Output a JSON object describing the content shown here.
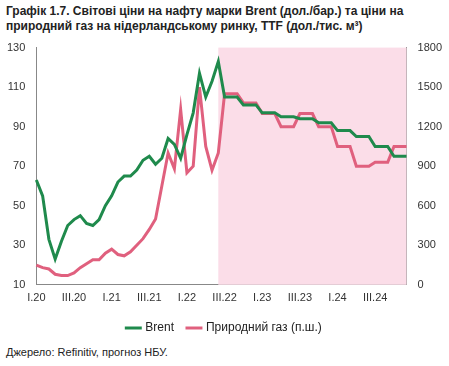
{
  "chart_data": {
    "type": "line",
    "title": "Графік 1.7. Світові ціни на нафту марки Brent (дол./бар.) та ціни на природний газ на нідерландському ринку, TTF (дол./тис. м³)",
    "source": "Джерело: Refinitiv, прогноз НБУ.",
    "categories": [
      "I.20",
      null,
      null,
      null,
      null,
      null,
      "III.20",
      null,
      null,
      null,
      null,
      null,
      "I.21",
      null,
      null,
      null,
      null,
      null,
      "III.21",
      null,
      null,
      null,
      null,
      null,
      "I.22",
      null,
      null,
      null,
      null,
      null,
      "III.22",
      null,
      null,
      null,
      null,
      null,
      "I.23",
      null,
      null,
      null,
      null,
      null,
      "III.23",
      null,
      null,
      null,
      null,
      null,
      "I.24",
      null,
      null,
      null,
      null,
      null,
      "III.24",
      null,
      null,
      null,
      null,
      null
    ],
    "series": [
      {
        "name": "Brent",
        "color": "#1f8a4c",
        "axis": "y",
        "values": [
          63,
          55,
          33,
          23,
          32,
          40,
          43,
          45,
          41,
          40,
          43,
          50,
          55,
          62,
          65,
          65,
          68,
          73,
          75,
          71,
          74,
          84,
          81,
          74,
          86,
          97,
          117,
          105,
          113,
          123,
          105,
          105,
          105,
          101,
          101,
          101,
          97,
          97,
          97,
          95,
          95,
          95,
          94,
          94,
          94,
          92,
          92,
          92,
          88,
          88,
          88,
          85,
          85,
          85,
          80,
          80,
          80,
          75,
          75,
          75
        ]
      },
      {
        "name": "Природний газ (п.ш.)",
        "color": "#e0607e",
        "axis": "y2",
        "values": [
          150,
          130,
          120,
          80,
          70,
          70,
          90,
          130,
          160,
          190,
          190,
          240,
          270,
          230,
          220,
          250,
          300,
          350,
          420,
          500,
          750,
          1000,
          880,
          1330,
          850,
          900,
          1500,
          1050,
          870,
          1000,
          1450,
          1450,
          1450,
          1380,
          1380,
          1380,
          1300,
          1300,
          1300,
          1200,
          1200,
          1200,
          1300,
          1300,
          1300,
          1200,
          1200,
          1200,
          1050,
          1050,
          1050,
          900,
          900,
          900,
          930,
          930,
          930,
          1050,
          1050,
          1050
        ]
      }
    ],
    "ylim": [
      10,
      130
    ],
    "yticks": [
      10,
      30,
      50,
      70,
      90,
      110,
      130
    ],
    "y2lim": [
      0,
      1800
    ],
    "y2ticks": [
      0,
      300,
      600,
      900,
      1200,
      1500,
      1800
    ],
    "forecast": {
      "start_index": 29,
      "color": "#fbdde8"
    },
    "grid": false,
    "legend": "bottom"
  }
}
